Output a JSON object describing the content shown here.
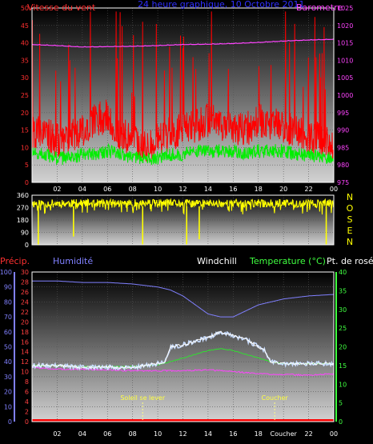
{
  "chart_data": [
    {
      "type": "line",
      "title": "24 heure graphique, 10 Octobre 2011",
      "left_axis_title": "Vitesse du vent",
      "right_axis_title": "Barometre",
      "x_ticks": [
        "02",
        "04",
        "06",
        "08",
        "10",
        "12",
        "14",
        "16",
        "18",
        "20",
        "22",
        "00"
      ],
      "ylim_left": [
        0,
        50
      ],
      "y_ticks_left": [
        "0",
        "5",
        "10",
        "15",
        "20",
        "25",
        "30",
        "35",
        "40",
        "45",
        "50"
      ],
      "ylim_right": [
        975,
        1025
      ],
      "y_ticks_right": [
        "975",
        "980",
        "985",
        "990",
        "995",
        "1000",
        "1005",
        "1010",
        "1015",
        "1020",
        "1025"
      ],
      "grid": true,
      "series": [
        {
          "role": "wind_gust",
          "color": "#ff0000",
          "x_hours": [
            1,
            2,
            3,
            4,
            5,
            6,
            7,
            8,
            9,
            10,
            11,
            12,
            13,
            14,
            15,
            16,
            17,
            18,
            19,
            20,
            21,
            22,
            23,
            24
          ],
          "values": [
            14,
            12,
            13,
            15,
            18,
            19,
            14,
            12,
            11,
            12,
            14,
            15,
            16,
            18,
            17,
            16,
            15,
            18,
            17,
            16,
            15,
            13,
            12,
            11
          ]
        },
        {
          "role": "wind_avg",
          "color": "#00ee00",
          "x_hours": [
            1,
            2,
            3,
            4,
            5,
            6,
            7,
            8,
            9,
            10,
            11,
            12,
            13,
            14,
            15,
            16,
            17,
            18,
            19,
            20,
            21,
            22,
            23,
            24
          ],
          "values": [
            8,
            7,
            7,
            8,
            8,
            9,
            8,
            7,
            7,
            7,
            8,
            8,
            9,
            9,
            9,
            9,
            8,
            9,
            9,
            9,
            8,
            8,
            7,
            7
          ]
        },
        {
          "role": "pressure",
          "color": "#ff44ff",
          "axis": "right",
          "x_hours": [
            0,
            2,
            4,
            6,
            8,
            10,
            12,
            14,
            16,
            18,
            20,
            22,
            24
          ],
          "values": [
            1014.5,
            1014.2,
            1013.8,
            1013.9,
            1014.0,
            1014.2,
            1014.5,
            1014.6,
            1014.8,
            1015.1,
            1015.5,
            1015.8,
            1016.0
          ]
        }
      ]
    },
    {
      "type": "scatter",
      "ylim": [
        0,
        360
      ],
      "y_ticks": [
        "0",
        "90",
        "180",
        "270",
        "360"
      ],
      "compass_labels": [
        "N",
        "O",
        "S",
        "E",
        "N"
      ],
      "series": [
        {
          "role": "wind_direction",
          "color": "#ffff00",
          "typical_deg": 300,
          "dips": [
            [
              0.5,
              0
            ],
            [
              3.3,
              60
            ],
            [
              8.8,
              0
            ],
            [
              12.3,
              0
            ],
            [
              13.3,
              40
            ],
            [
              23.4,
              0
            ]
          ]
        }
      ]
    },
    {
      "type": "line",
      "labels": {
        "precip": "Précip.",
        "humidity": "Humidité",
        "windchill": "Windchill",
        "temperature": "Temperature (°C)",
        "dewpoint": "Pt. de rosée"
      },
      "x_ticks": [
        "02",
        "04",
        "06",
        "08",
        "10",
        "12",
        "14",
        "16",
        "18",
        "Coucher",
        "22",
        "00"
      ],
      "annotations": {
        "sunrise": "Soleil se lever",
        "sunset": "Coucher"
      },
      "sunrise_hour": 8.8,
      "sunset_hour": 19.3,
      "axes": {
        "humidity": {
          "ylim": [
            0,
            100
          ],
          "ticks": [
            "0",
            "10",
            "20",
            "30",
            "40",
            "50",
            "60",
            "70",
            "80",
            "90",
            "100"
          ],
          "color": "#8080ff"
        },
        "precip": {
          "ylim": [
            0,
            30
          ],
          "ticks": [
            "0",
            "2",
            "4",
            "6",
            "8",
            "10",
            "12",
            "14",
            "16",
            "18",
            "20",
            "22",
            "24",
            "26",
            "28",
            "30"
          ],
          "color": "#ff4040"
        },
        "temperature": {
          "ylim": [
            0,
            40
          ],
          "ticks": [
            "0",
            "5",
            "10",
            "15",
            "20",
            "25",
            "30",
            "35",
            "40"
          ],
          "color": "#40ff40"
        }
      },
      "series": [
        {
          "role": "humidity",
          "color": "#8080ff",
          "x_hours": [
            0,
            2,
            4,
            6,
            8,
            9,
            10,
            11,
            12,
            13,
            14,
            15,
            16,
            17,
            18,
            19,
            20,
            22,
            24
          ],
          "values": [
            94,
            94,
            93,
            93,
            92,
            91,
            90,
            88,
            84,
            78,
            72,
            70,
            70,
            74,
            78,
            80,
            82,
            84,
            85
          ]
        },
        {
          "role": "temperature",
          "color": "#c8dcff",
          "x_hours": [
            0,
            2,
            4,
            6,
            8,
            9,
            10,
            10.6,
            11,
            12,
            13,
            14,
            15,
            16,
            17,
            18,
            18.5,
            19,
            20,
            22,
            24
          ],
          "values": [
            15,
            15,
            14.5,
            14.5,
            14.5,
            15,
            15.5,
            16,
            20,
            20.5,
            21.5,
            22.5,
            24,
            23,
            22,
            20,
            19,
            16,
            15.5,
            15.5,
            15.5
          ]
        },
        {
          "role": "windchill",
          "color": "#ffffff",
          "x_hours": [
            0,
            2,
            4,
            6,
            8,
            9,
            10,
            10.6,
            11,
            12,
            13,
            14,
            15,
            16,
            17,
            18,
            18.5,
            19,
            20,
            22,
            24
          ],
          "values": [
            15,
            15,
            14.5,
            14.5,
            14.5,
            15,
            15.5,
            16,
            20,
            20.5,
            21.5,
            22.5,
            24,
            23,
            22,
            20,
            19,
            16,
            15.5,
            15.5,
            15.5
          ]
        },
        {
          "role": "dewpoint",
          "color": "#30e030",
          "x_hours": [
            0,
            2,
            4,
            6,
            8,
            9,
            10,
            11,
            12,
            13,
            14,
            15,
            16,
            17,
            18,
            19,
            20,
            22,
            24
          ],
          "values": [
            15,
            15,
            14.8,
            14.7,
            14.8,
            15,
            15.2,
            16,
            17,
            18,
            19,
            19.5,
            19,
            18,
            17,
            16,
            15.5,
            15.5,
            15.5
          ]
        },
        {
          "role": "precip_line",
          "color": "#ff44ff",
          "axis": "temperature",
          "x_hours": [
            0,
            2,
            4,
            6,
            8,
            10,
            12,
            14,
            16,
            18,
            20,
            22,
            24
          ],
          "values": [
            14.5,
            14,
            14,
            13.8,
            13.6,
            13.6,
            13.6,
            13.8,
            13.4,
            12.8,
            12.6,
            12.4,
            12.8
          ]
        },
        {
          "role": "precip_bar",
          "color": "#ff0000",
          "axis": "precip",
          "x_hours": [
            0,
            24
          ],
          "values": [
            0,
            0
          ]
        }
      ]
    }
  ]
}
